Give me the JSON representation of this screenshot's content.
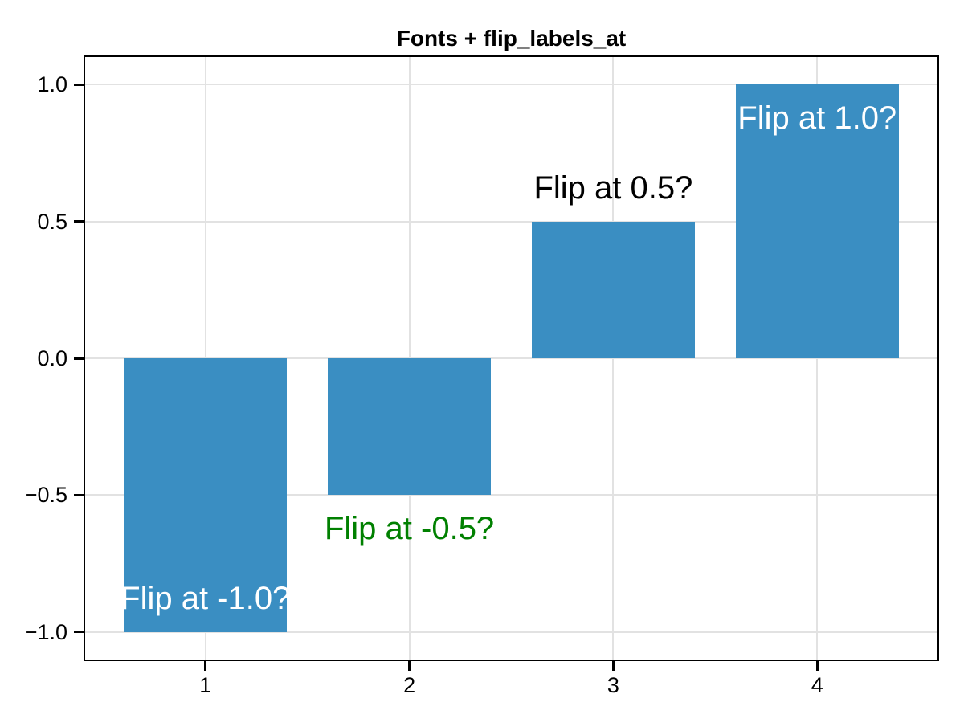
{
  "chart_data": {
    "type": "bar",
    "title": "Fonts + flip_labels_at",
    "x": [
      1,
      2,
      3,
      4
    ],
    "values": [
      -1.0,
      -0.5,
      0.5,
      1.0
    ],
    "bar_width": 0.8,
    "bar_color": "#3a8ec2",
    "bar_labels": [
      {
        "text": "Flip at -1.0?",
        "color": "#ffffff",
        "placement": "inside"
      },
      {
        "text": "Flip at -0.5?",
        "color": "#008000",
        "placement": "outside"
      },
      {
        "text": "Flip at 0.5?",
        "color": "#000000",
        "placement": "outside"
      },
      {
        "text": "Flip at 1.0?",
        "color": "#ffffff",
        "placement": "inside"
      }
    ],
    "xlabel": "",
    "ylabel": "",
    "xlim": [
      0.41,
      4.59
    ],
    "ylim": [
      -1.1,
      1.1
    ],
    "x_tick_values": [
      1,
      2,
      3,
      4
    ],
    "x_tick_labels": [
      "1",
      "2",
      "3",
      "4"
    ],
    "y_tick_values": [
      1.0,
      0.5,
      0.0,
      -0.5,
      -1.0
    ],
    "y_tick_labels": [
      "1.0",
      "0.5",
      "0.0",
      "−0.5",
      "−1.0"
    ],
    "grid": true,
    "grid_color": "#e2e2e2",
    "spine_color": "#000000",
    "background_color": "#ffffff",
    "legend": "none"
  }
}
